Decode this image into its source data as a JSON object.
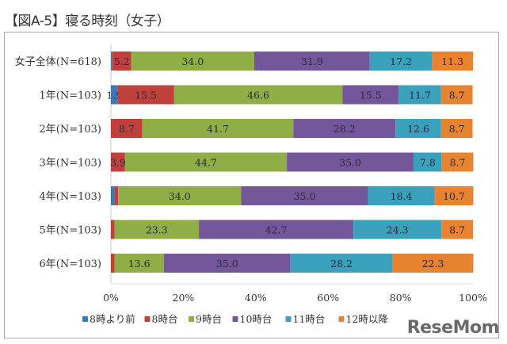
{
  "header": {
    "title": "【図A-5】寝る時刻（女子）"
  },
  "watermark": "ReseMom",
  "chart_data": {
    "type": "bar",
    "orientation": "horizontal",
    "stacked": "percent",
    "title": "【図A-5】寝る時刻（女子）",
    "xlabel": "",
    "ylabel": "",
    "xlim": [
      0,
      100
    ],
    "x_ticks": [
      "0%",
      "20%",
      "40%",
      "60%",
      "80%",
      "100%"
    ],
    "grid": false,
    "legend_position": "bottom",
    "categories": [
      "女子全体(N=618)",
      "1年(N=103)",
      "2年(N=103)",
      "3年(N=103)",
      "4年(N=103)",
      "5年(N=103)",
      "6年(N=103)"
    ],
    "series": [
      {
        "name": "8時より前",
        "color": "#3f76b5",
        "values": [
          0.4,
          1.9,
          0.0,
          0.0,
          1.0,
          0.0,
          0.0
        ],
        "labels": [
          "",
          "1.9",
          "",
          "",
          "",
          "",
          ""
        ]
      },
      {
        "name": "8時台",
        "color": "#c0413c",
        "values": [
          5.2,
          15.5,
          8.7,
          3.9,
          1.0,
          1.0,
          1.0
        ],
        "labels": [
          "5.2",
          "15.5",
          "8.7",
          "3.9",
          "",
          "",
          ""
        ]
      },
      {
        "name": "9時台",
        "color": "#8fae45",
        "values": [
          34.0,
          46.6,
          41.7,
          44.7,
          34.0,
          23.3,
          13.6
        ],
        "labels": [
          "34.0",
          "46.6",
          "41.7",
          "44.7",
          "34.0",
          "23.3",
          "13.6"
        ]
      },
      {
        "name": "10時台",
        "color": "#74569a",
        "values": [
          31.9,
          15.5,
          28.2,
          35.0,
          35.0,
          42.7,
          35.0
        ],
        "labels": [
          "31.9",
          "15.5",
          "28.2",
          "35.0",
          "35.0",
          "42.7",
          "35.0"
        ]
      },
      {
        "name": "11時台",
        "color": "#3aa1bd",
        "values": [
          17.2,
          11.7,
          12.6,
          7.8,
          18.4,
          24.3,
          28.2
        ],
        "labels": [
          "17.2",
          "11.7",
          "12.6",
          "7.8",
          "18.4",
          "24.3",
          "28.2"
        ]
      },
      {
        "name": "12時以降",
        "color": "#e8832f",
        "values": [
          11.3,
          8.7,
          8.7,
          8.7,
          10.7,
          8.7,
          22.3
        ],
        "labels": [
          "11.3",
          "8.7",
          "8.7",
          "8.7",
          "10.7",
          "8.7",
          "22.3"
        ]
      }
    ]
  }
}
